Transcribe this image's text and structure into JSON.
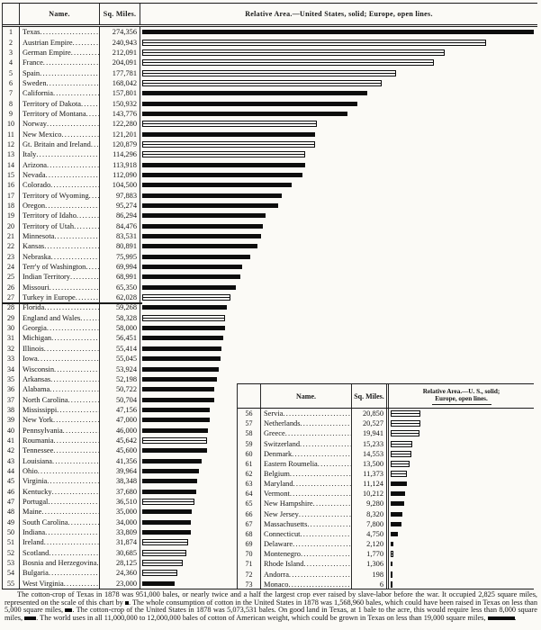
{
  "page": {
    "paper_color": "#fbfaf6",
    "ink_color": "#151515",
    "bar_color": "#0d0d0d"
  },
  "main_table": {
    "headers": {
      "name": "Name.",
      "sq_miles": "Sq. Miles.",
      "relative_area": "Relative Area.—United States, solid;  Europe, open lines."
    }
  },
  "secondary_table": {
    "headers": {
      "name": "Name.",
      "sq_miles": "Sq. Miles.",
      "relative_area_line1": "Relative Area.—U. S., solid;",
      "relative_area_line2": "Europe, open lines."
    }
  },
  "legend": {
    "united_states_style": "solid",
    "europe_style": "open lines"
  },
  "chart_data": {
    "type": "bar",
    "title": "Relative Area.—United States, solid; Europe, open lines.",
    "value_unit": "square miles",
    "xlim": [
      0,
      274356
    ],
    "bar_styles": {
      "United States": "solid",
      "Europe": "open"
    },
    "layout": {
      "main_rows": "ranks 1-55",
      "inset_rows": "ranks 56-73",
      "grid": false
    },
    "entries": [
      {
        "rank": 1,
        "name": "Texas",
        "value": 274356,
        "region": "United States"
      },
      {
        "rank": 2,
        "name": "Austrian Empire",
        "value": 240943,
        "region": "Europe"
      },
      {
        "rank": 3,
        "name": "German Empire",
        "value": 212091,
        "region": "Europe"
      },
      {
        "rank": 4,
        "name": "France",
        "value": 204091,
        "region": "Europe"
      },
      {
        "rank": 5,
        "name": "Spain",
        "value": 177781,
        "region": "Europe"
      },
      {
        "rank": 6,
        "name": "Sweden",
        "value": 168042,
        "region": "Europe"
      },
      {
        "rank": 7,
        "name": "California",
        "value": 157801,
        "region": "United States"
      },
      {
        "rank": 8,
        "name": "Territory of Dakota",
        "value": 150932,
        "region": "United States"
      },
      {
        "rank": 9,
        "name": "Territory of Montana",
        "value": 143776,
        "region": "United States"
      },
      {
        "rank": 10,
        "name": "Norway",
        "value": 122280,
        "region": "Europe"
      },
      {
        "rank": 11,
        "name": "New Mexico",
        "value": 121201,
        "region": "United States"
      },
      {
        "rank": 12,
        "name": "Gt. Britain and Ireland",
        "value": 120879,
        "region": "Europe"
      },
      {
        "rank": 13,
        "name": "Italy",
        "value": 114296,
        "region": "Europe"
      },
      {
        "rank": 14,
        "name": "Arizona",
        "value": 113918,
        "region": "United States"
      },
      {
        "rank": 15,
        "name": "Nevada",
        "value": 112090,
        "region": "United States"
      },
      {
        "rank": 16,
        "name": "Colorado",
        "value": 104500,
        "region": "United States"
      },
      {
        "rank": 17,
        "name": "Territory of Wyoming",
        "value": 97883,
        "region": "United States"
      },
      {
        "rank": 18,
        "name": "Oregon",
        "value": 95274,
        "region": "United States"
      },
      {
        "rank": 19,
        "name": "Territory of Idaho",
        "value": 86294,
        "region": "United States"
      },
      {
        "rank": 20,
        "name": "Territory of Utah",
        "value": 84476,
        "region": "United States"
      },
      {
        "rank": 21,
        "name": "Minnesota",
        "value": 83531,
        "region": "United States"
      },
      {
        "rank": 22,
        "name": "Kansas",
        "value": 80891,
        "region": "United States"
      },
      {
        "rank": 23,
        "name": "Nebraska",
        "value": 75995,
        "region": "United States"
      },
      {
        "rank": 24,
        "name": "Terr'y of Washington",
        "value": 69994,
        "region": "United States"
      },
      {
        "rank": 25,
        "name": "Indian Territory",
        "value": 68991,
        "region": "United States"
      },
      {
        "rank": 26,
        "name": "Missouri",
        "value": 65350,
        "region": "United States"
      },
      {
        "rank": 27,
        "name": "Turkey in Europe",
        "value": 62028,
        "region": "Europe"
      },
      {
        "rank": 28,
        "name": "Florida",
        "value": 59268,
        "region": "United States"
      },
      {
        "rank": 29,
        "name": "England and Wales",
        "value": 58328,
        "region": "Europe"
      },
      {
        "rank": 30,
        "name": "Georgia",
        "value": 58000,
        "region": "United States"
      },
      {
        "rank": 31,
        "name": "Michigan",
        "value": 56451,
        "region": "United States"
      },
      {
        "rank": 32,
        "name": "Illinois",
        "value": 55414,
        "region": "United States"
      },
      {
        "rank": 33,
        "name": "Iowa",
        "value": 55045,
        "region": "United States"
      },
      {
        "rank": 34,
        "name": "Wisconsin",
        "value": 53924,
        "region": "United States"
      },
      {
        "rank": 35,
        "name": "Arkansas",
        "value": 52198,
        "region": "United States"
      },
      {
        "rank": 36,
        "name": "Alabama",
        "value": 50722,
        "region": "United States"
      },
      {
        "rank": 37,
        "name": "North Carolina",
        "value": 50704,
        "region": "United States"
      },
      {
        "rank": 38,
        "name": "Mississippi",
        "value": 47156,
        "region": "United States"
      },
      {
        "rank": 39,
        "name": "New York",
        "value": 47000,
        "region": "United States"
      },
      {
        "rank": 40,
        "name": "Pennsylvania",
        "value": 46000,
        "region": "United States"
      },
      {
        "rank": 41,
        "name": "Roumania",
        "value": 45642,
        "region": "Europe"
      },
      {
        "rank": 42,
        "name": "Tennessee",
        "value": 45600,
        "region": "United States"
      },
      {
        "rank": 43,
        "name": "Louisiana",
        "value": 41356,
        "region": "United States"
      },
      {
        "rank": 44,
        "name": "Ohio",
        "value": 39964,
        "region": "United States"
      },
      {
        "rank": 45,
        "name": "Virginia",
        "value": 38348,
        "region": "United States"
      },
      {
        "rank": 46,
        "name": "Kentucky",
        "value": 37680,
        "region": "United States"
      },
      {
        "rank": 47,
        "name": "Portugal",
        "value": 36510,
        "region": "Europe"
      },
      {
        "rank": 48,
        "name": "Maine",
        "value": 35000,
        "region": "United States"
      },
      {
        "rank": 49,
        "name": "South Carolina",
        "value": 34000,
        "region": "United States"
      },
      {
        "rank": 50,
        "name": "Indiana",
        "value": 33809,
        "region": "United States"
      },
      {
        "rank": 51,
        "name": "Ireland",
        "value": 31874,
        "region": "Europe"
      },
      {
        "rank": 52,
        "name": "Scotland",
        "value": 30685,
        "region": "Europe"
      },
      {
        "rank": 53,
        "name": "Bosnia and Herzegovina",
        "value": 28125,
        "region": "Europe"
      },
      {
        "rank": 54,
        "name": "Bulgaria",
        "value": 24360,
        "region": "Europe"
      },
      {
        "rank": 55,
        "name": "West Virginia",
        "value": 23000,
        "region": "United States"
      },
      {
        "rank": 56,
        "name": "Servia",
        "value": 20850,
        "region": "Europe"
      },
      {
        "rank": 57,
        "name": "Netherlands",
        "value": 20527,
        "region": "Europe"
      },
      {
        "rank": 58,
        "name": "Greece",
        "value": 19941,
        "region": "Europe"
      },
      {
        "rank": 59,
        "name": "Switzerland",
        "value": 15233,
        "region": "Europe"
      },
      {
        "rank": 60,
        "name": "Denmark",
        "value": 14553,
        "region": "Europe"
      },
      {
        "rank": 61,
        "name": "Eastern Roumelia",
        "value": 13500,
        "region": "Europe"
      },
      {
        "rank": 62,
        "name": "Belgium",
        "value": 11373,
        "region": "Europe"
      },
      {
        "rank": 63,
        "name": "Maryland",
        "value": 11124,
        "region": "United States"
      },
      {
        "rank": 64,
        "name": "Vermont",
        "value": 10212,
        "region": "United States"
      },
      {
        "rank": 65,
        "name": "New Hampshire",
        "value": 9280,
        "region": "United States"
      },
      {
        "rank": 66,
        "name": "New Jersey",
        "value": 8320,
        "region": "United States"
      },
      {
        "rank": 67,
        "name": "Massachusetts",
        "value": 7800,
        "region": "United States"
      },
      {
        "rank": 68,
        "name": "Connecticut",
        "value": 4750,
        "region": "United States"
      },
      {
        "rank": 69,
        "name": "Delaware",
        "value": 2120,
        "region": "United States"
      },
      {
        "rank": 70,
        "name": "Montenegro",
        "value": 1770,
        "region": "Europe"
      },
      {
        "rank": 71,
        "name": "Rhode Island",
        "value": 1306,
        "region": "United States"
      },
      {
        "rank": 72,
        "name": "Andorra",
        "value": 198,
        "region": "Europe"
      },
      {
        "rank": 73,
        "name": "Monaco",
        "value": 6,
        "region": "Europe"
      }
    ]
  },
  "footer": {
    "segments": [
      {
        "text": "The cotton-crop of Texas in 1878 was 951,000 bales, or nearly twice and a half the largest crop ever raised by slave-labor before the war. It occupied 2,825 square miles, represented on the scale of this chart by "
      },
      {
        "symbol": "area-scale-block",
        "sq_miles": 2825
      },
      {
        "text": ". The whole consumption of cotton in the United States in 1878 was 1,568,960 bales, which could have been raised in Texas on less than 5,000 square miles, "
      },
      {
        "symbol": "area-scale-block",
        "sq_miles": 5000
      },
      {
        "text": ". The cotton-crop of the United States in 1878 was 5,073,531 bales. On good land in Texas, at 1 bale to the acre, this would require less than 8,000 square miles, "
      },
      {
        "symbol": "area-scale-block",
        "sq_miles": 8000
      },
      {
        "text": ". The world uses in all 11,000,000 to 12,000,000 bales of cotton of American weight, which could be grown in Texas on less than 19,000 square miles, "
      },
      {
        "symbol": "area-scale-block",
        "sq_miles": 19000
      },
      {
        "text": "."
      }
    ]
  }
}
